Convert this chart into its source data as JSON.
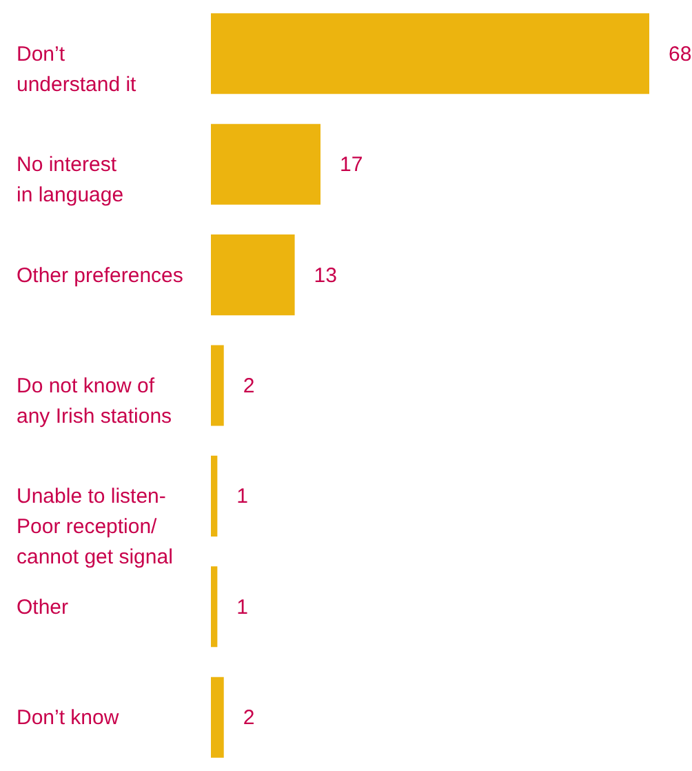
{
  "chart_data": {
    "type": "bar",
    "orientation": "horizontal",
    "data_labels": true,
    "categories": [
      "Don’t\nunderstand it",
      "No interest\nin language",
      "Other preferences",
      "Do not know of\nany Irish stations",
      "Unable to listen-\nPoor reception/\ncannot get signal",
      "Other",
      "Don’t know"
    ],
    "values": [
      68,
      17,
      13,
      2,
      1,
      1,
      2
    ],
    "color": "#ecb40f"
  }
}
